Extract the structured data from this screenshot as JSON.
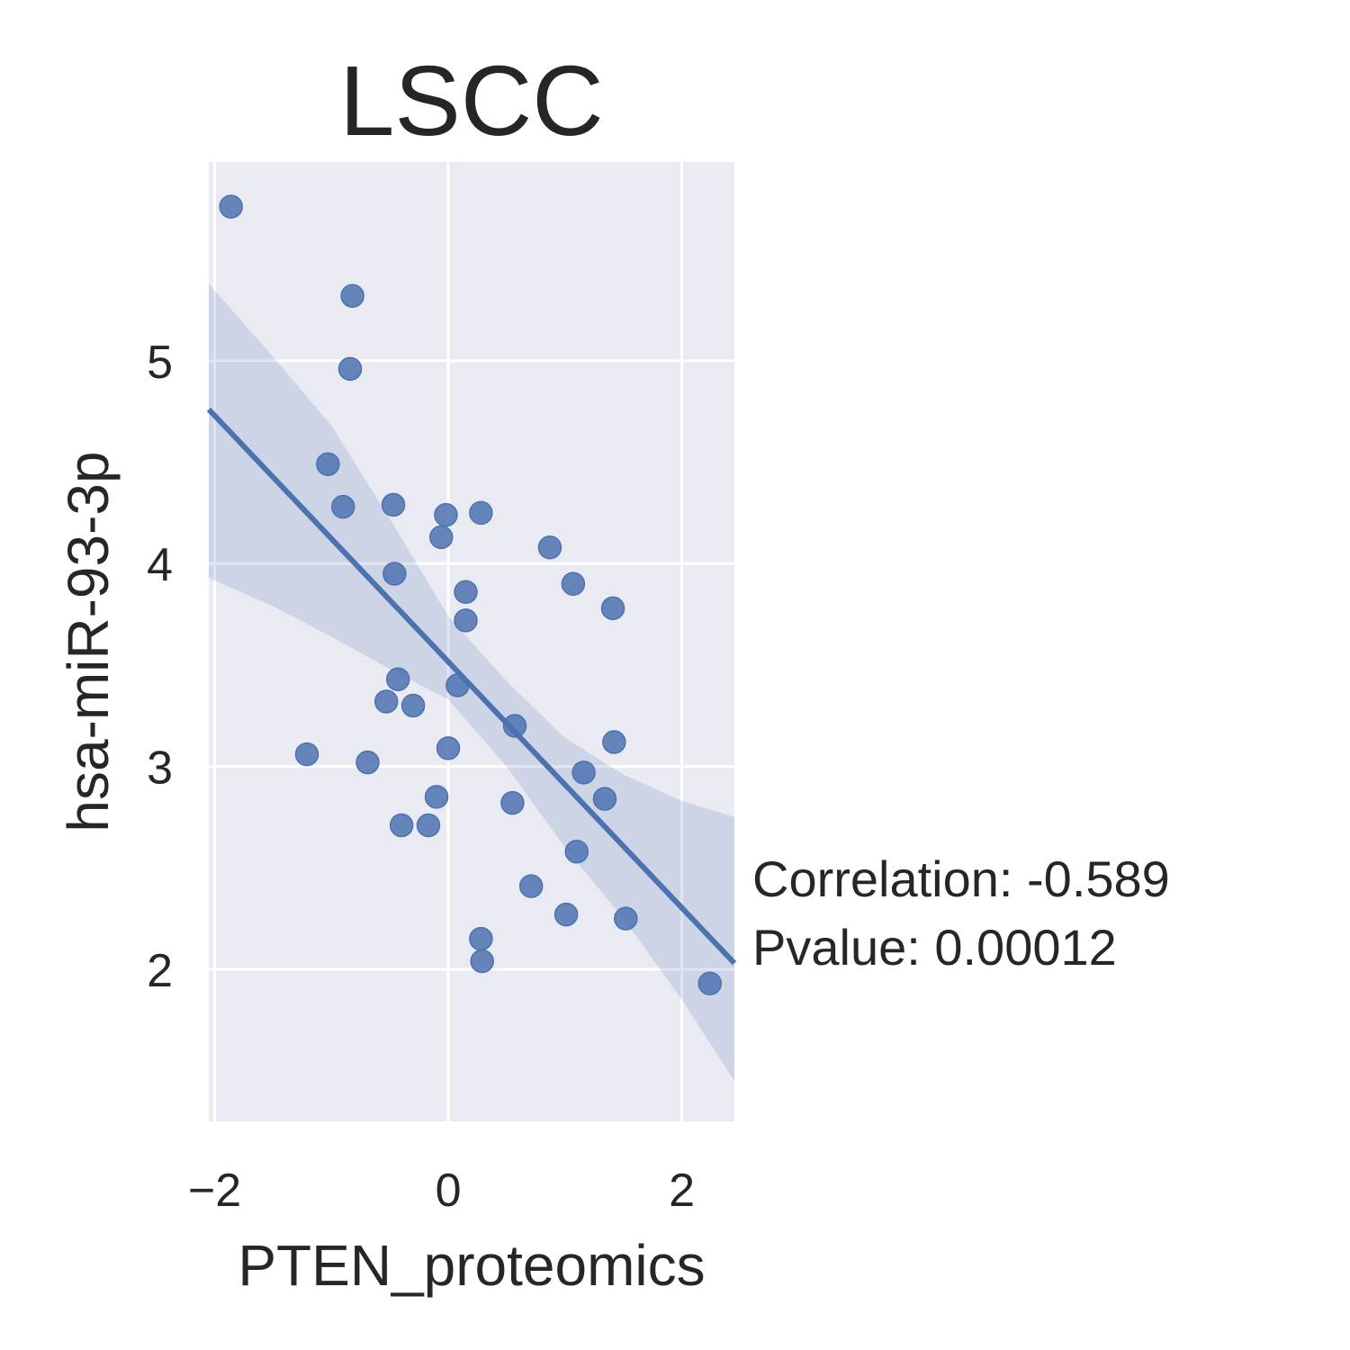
{
  "chart_data": {
    "type": "scatter",
    "title": "LSCC",
    "xlabel": "PTEN_proteomics",
    "ylabel": "hsa-miR-93-3p",
    "xlim": [
      -2.05,
      2.45
    ],
    "ylim": [
      1.25,
      5.98
    ],
    "x_ticks": [
      -2,
      0,
      2
    ],
    "x_tick_labels": [
      "−2",
      "0",
      "2"
    ],
    "y_ticks": [
      2,
      3,
      4,
      5
    ],
    "y_tick_labels": [
      "2",
      "3",
      "4",
      "5"
    ],
    "grid": true,
    "colors": {
      "background": "#EAEAF2",
      "points": "#4C72B0",
      "line": "#4C72B0",
      "band": "#4C72B0",
      "grid": "#FFFFFF"
    },
    "points": [
      {
        "x": -1.86,
        "y": 5.76
      },
      {
        "x": -0.82,
        "y": 5.32
      },
      {
        "x": -0.84,
        "y": 4.96
      },
      {
        "x": -1.03,
        "y": 4.49
      },
      {
        "x": -0.9,
        "y": 4.28
      },
      {
        "x": -0.47,
        "y": 4.29
      },
      {
        "x": -0.02,
        "y": 4.24
      },
      {
        "x": 0.28,
        "y": 4.25
      },
      {
        "x": -0.06,
        "y": 4.13
      },
      {
        "x": 0.87,
        "y": 4.08
      },
      {
        "x": -0.46,
        "y": 3.95
      },
      {
        "x": 1.07,
        "y": 3.9
      },
      {
        "x": 0.15,
        "y": 3.86
      },
      {
        "x": 1.41,
        "y": 3.78
      },
      {
        "x": 0.15,
        "y": 3.72
      },
      {
        "x": -0.43,
        "y": 3.43
      },
      {
        "x": 0.08,
        "y": 3.4
      },
      {
        "x": -0.53,
        "y": 3.32
      },
      {
        "x": -0.3,
        "y": 3.3
      },
      {
        "x": 0.57,
        "y": 3.2
      },
      {
        "x": 1.42,
        "y": 3.12
      },
      {
        "x": -1.21,
        "y": 3.06
      },
      {
        "x": 0.0,
        "y": 3.09
      },
      {
        "x": -0.69,
        "y": 3.02
      },
      {
        "x": 1.16,
        "y": 2.97
      },
      {
        "x": -0.1,
        "y": 2.85
      },
      {
        "x": 0.55,
        "y": 2.82
      },
      {
        "x": 1.34,
        "y": 2.84
      },
      {
        "x": -0.4,
        "y": 2.71
      },
      {
        "x": -0.17,
        "y": 2.71
      },
      {
        "x": 1.1,
        "y": 2.58
      },
      {
        "x": 0.71,
        "y": 2.41
      },
      {
        "x": 1.01,
        "y": 2.27
      },
      {
        "x": 1.52,
        "y": 2.25
      },
      {
        "x": 0.28,
        "y": 2.15
      },
      {
        "x": 0.29,
        "y": 2.04
      },
      {
        "x": 2.24,
        "y": 1.93
      }
    ],
    "regression_line": {
      "x": [
        -2.05,
        2.45
      ],
      "y": [
        4.76,
        2.03
      ]
    },
    "confidence_band": {
      "x": [
        -2.05,
        -1.5,
        -1.0,
        -0.5,
        0.0,
        0.5,
        1.0,
        1.5,
        2.0,
        2.45
      ],
      "upper": [
        5.38,
        5.02,
        4.68,
        4.22,
        3.74,
        3.42,
        3.14,
        2.96,
        2.83,
        2.75
      ],
      "lower": [
        3.93,
        3.79,
        3.64,
        3.48,
        3.33,
        3.0,
        2.6,
        2.25,
        1.85,
        1.45
      ]
    },
    "annotation": {
      "line1": "Correlation: -0.589",
      "line2": "Pvalue: 0.00012"
    }
  }
}
